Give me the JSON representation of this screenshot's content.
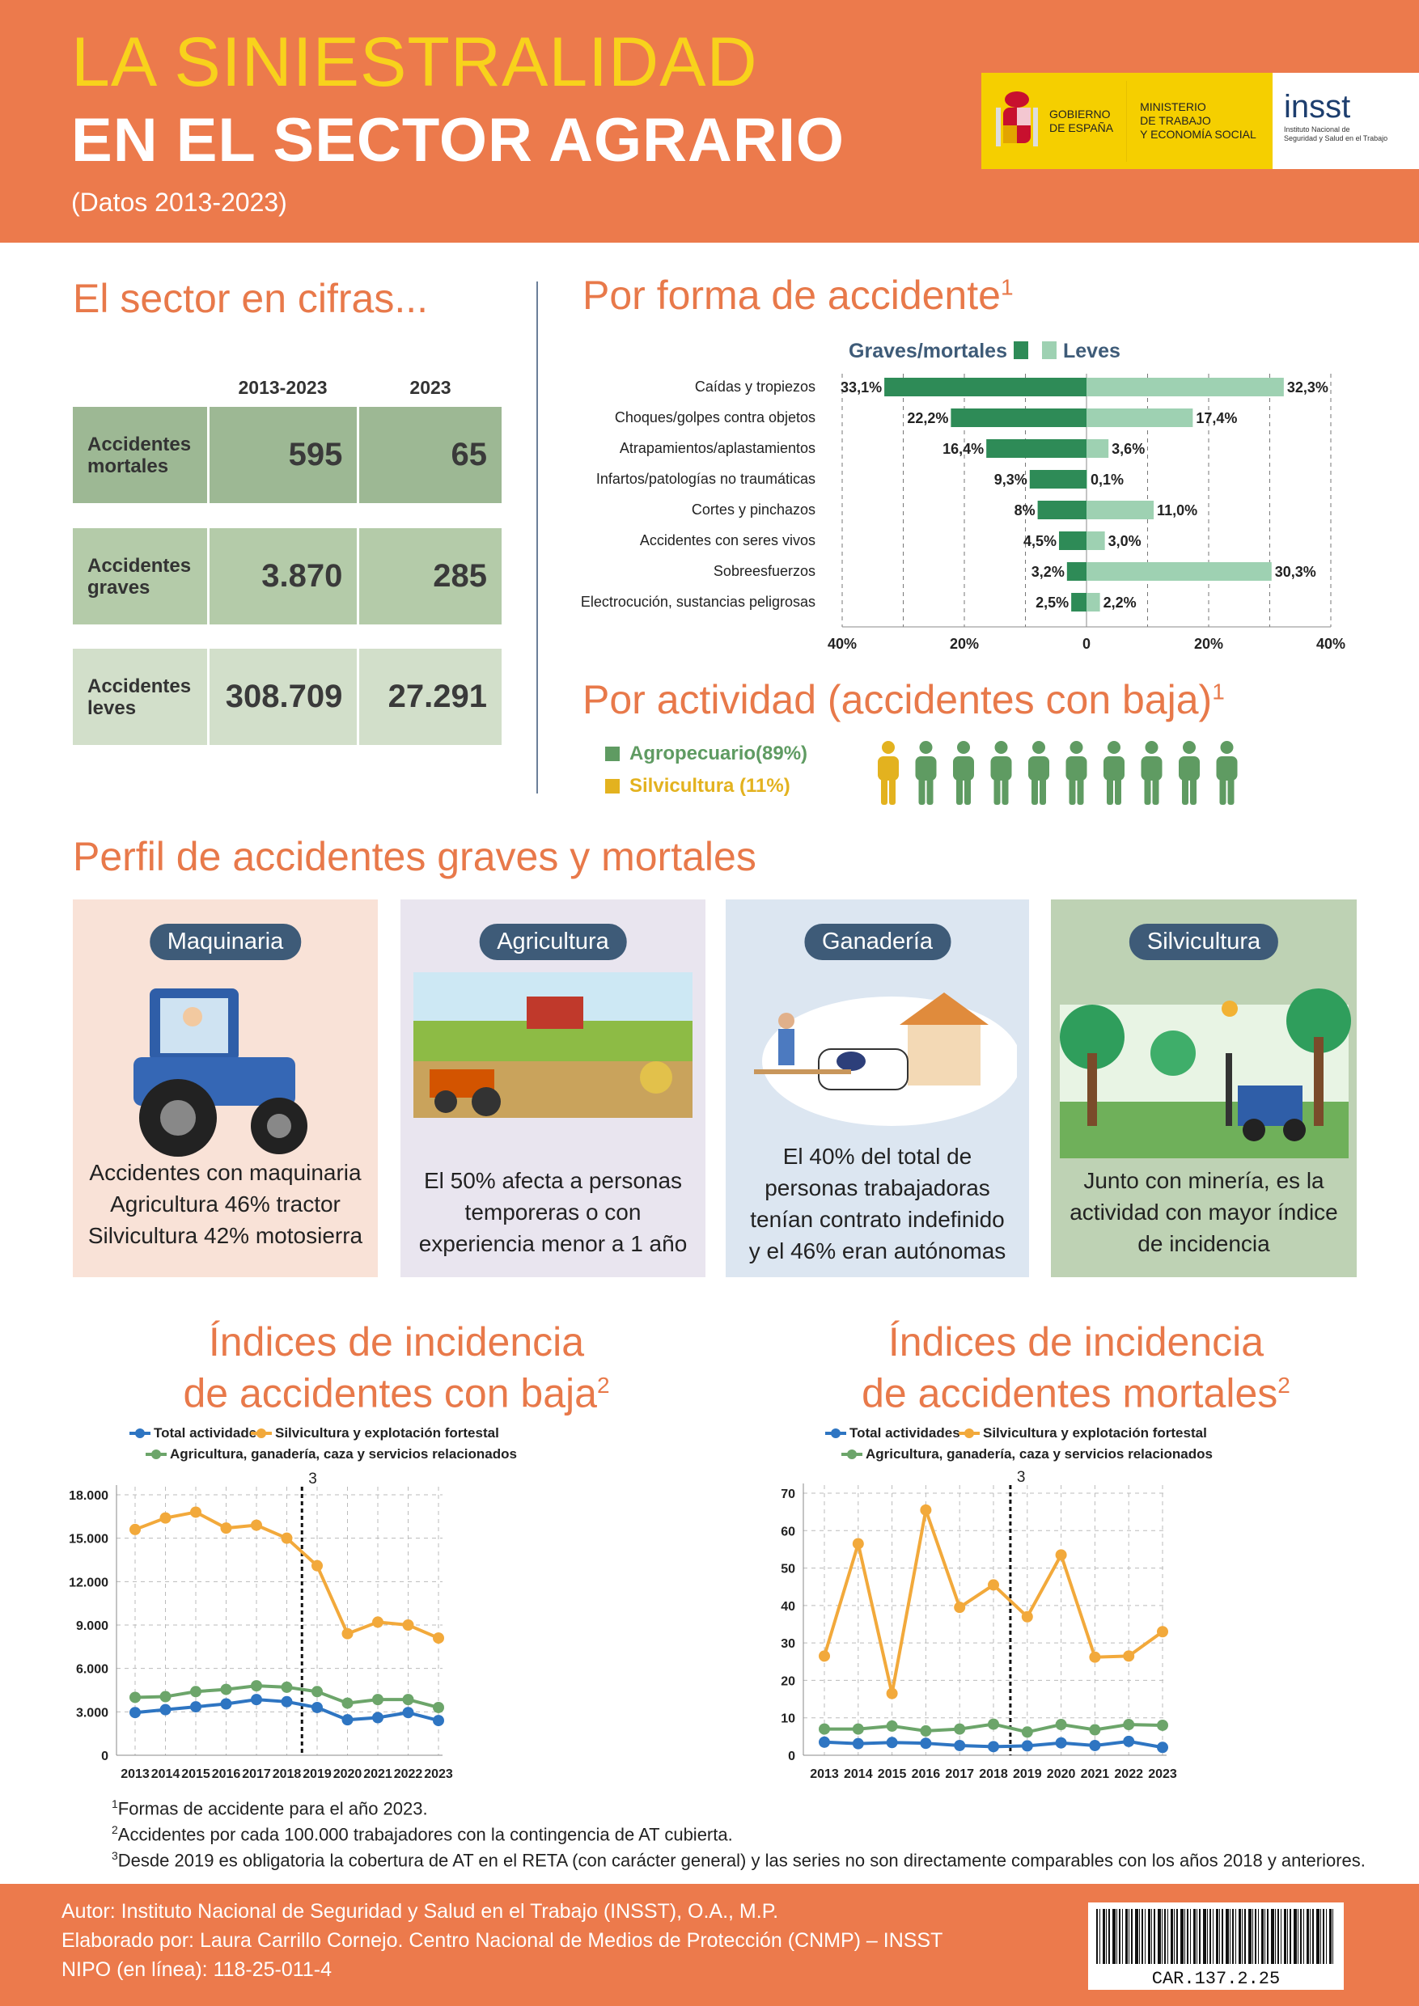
{
  "header": {
    "title_line1": "LA SINIESTRALIDAD",
    "title_line2": "EN EL SECTOR AGRARIO",
    "subtitle": "(Datos 2013-2023)",
    "logo_gobierno": [
      "GOBIERNO",
      "DE ESPAÑA"
    ],
    "logo_ministerio": [
      "MINISTERIO",
      "DE TRABAJO",
      "Y ECONOMÍA SOCIAL"
    ],
    "logo_insst": "insst",
    "logo_insst_sub": [
      "Instituto Nacional de",
      "Seguridad y Salud en el Trabajo"
    ]
  },
  "cifras": {
    "title": "El sector en cifras...",
    "col1": "2013-2023",
    "col2": "2023",
    "rows": [
      {
        "label": "Accidentes mortales",
        "v1": "595",
        "v2": "65",
        "color": "#9DB894"
      },
      {
        "label": "Accidentes graves",
        "v1": "3.870",
        "v2": "285",
        "color": "#B4CBA9"
      },
      {
        "label": "Accidentes leves",
        "v1": "308.709",
        "v2": "27.291",
        "color": "#D2DFCA"
      }
    ]
  },
  "forma": {
    "title": "Por forma de accidente",
    "sup": "1",
    "legend_graves": "Graves/mortales",
    "legend_leves": "Leves"
  },
  "actividad": {
    "title": "Por actividad (accidentes con baja)",
    "sup": "1",
    "legend": [
      {
        "label": "Agropecuario(89%)",
        "color": "#5F9B62"
      },
      {
        "label": "Silvicultura (11%)",
        "color": "#E3B21F"
      }
    ],
    "person_icons": {
      "total": 10,
      "silvicultura": 1
    }
  },
  "perfil": {
    "title": "Perfil de accidentes graves y mortales",
    "cards": [
      {
        "label": "Maquinaria",
        "text": [
          "Accidentes con maquinaria",
          "Agricultura 46% tractor",
          "Silvicultura 42% motosierra"
        ],
        "bg": "#F9E2D7"
      },
      {
        "label": "Agricultura",
        "text": [
          "El 50% afecta a personas",
          "temporeras o con",
          "experiencia menor a 1 año"
        ],
        "bg": "#E9E5EF"
      },
      {
        "label": "Ganadería",
        "text": [
          "El 40% del total de",
          "personas trabajadoras",
          "tenían contrato indefinido",
          "y el 46% eran autónomas"
        ],
        "bg": "#DCE6F1"
      },
      {
        "label": "Silvicultura",
        "text": [
          "Junto con minería, es la",
          "actividad con mayor índice",
          "de incidencia"
        ],
        "bg": "#BED2B4"
      }
    ]
  },
  "chart_data": [
    {
      "type": "bar",
      "orientation": "horizontal-diverging",
      "title": "Por forma de accidente",
      "categories": [
        "Caídas y tropiezos",
        "Choques/golpes contra objetos",
        "Atrapamientos/aplastamientos",
        "Infartos/patologías no traumáticas",
        "Cortes y pinchazos",
        "Accidentes con seres vivos",
        "Sobreesfuerzos",
        "Electrocución, sustancias peligrosas"
      ],
      "series": [
        {
          "name": "Graves/mortales",
          "values": [
            33.1,
            22.2,
            16.4,
            9.3,
            8,
            4.5,
            3.2,
            2.5
          ],
          "labels": [
            "33,1%",
            "22,2%",
            "16,4%",
            "9,3%",
            "8%",
            "4,5%",
            "3,2%",
            "2,5%"
          ],
          "color": "#2E8B57"
        },
        {
          "name": "Leves",
          "values": [
            32.3,
            17.4,
            3.6,
            0.1,
            11.0,
            3.0,
            30.3,
            2.2
          ],
          "labels": [
            "32,3%",
            "17,4%",
            "3,6%",
            "0,1%",
            "11,0%",
            "3,0%",
            "30,3%",
            "2,2%"
          ],
          "color": "#9ED1B2"
        }
      ],
      "xlim": [
        -40,
        40
      ],
      "xticks": [
        "40%",
        "20%",
        "0",
        "20%",
        "40%"
      ],
      "grid": true,
      "legend": "top"
    },
    {
      "type": "line",
      "title_lines": [
        "Índices de incidencia",
        "de accidentes con baja"
      ],
      "sup": "2",
      "marker_note": "3",
      "x": [
        "2013",
        "2014",
        "2015",
        "2016",
        "2017",
        "2018",
        "2019",
        "2020",
        "2021",
        "2022",
        "2023"
      ],
      "series": [
        {
          "name": "Total actividades",
          "color": "#2E75C2",
          "values": [
            2950,
            3150,
            3350,
            3550,
            3850,
            3700,
            3300,
            2450,
            2600,
            2950,
            2400
          ]
        },
        {
          "name": "Silvicultura y explotación fortestal",
          "color": "#F2A93B",
          "values": [
            15600,
            16400,
            16800,
            15700,
            15900,
            15000,
            13100,
            8400,
            9200,
            9000,
            8100
          ]
        },
        {
          "name": "Agricultura, ganadería, caza y servicios relacionados",
          "color": "#6CA56A",
          "values": [
            4000,
            4050,
            4400,
            4550,
            4800,
            4700,
            4400,
            3600,
            3850,
            3850,
            3300
          ]
        }
      ],
      "ylim": [
        0,
        18000
      ],
      "yticks": [
        "0",
        "3.000",
        "6.000",
        "9.000",
        "12.000",
        "15.000",
        "18.000"
      ],
      "grid": true,
      "legend": "top"
    },
    {
      "type": "line",
      "title_lines": [
        "Índices de incidencia",
        "de accidentes mortales"
      ],
      "sup": "2",
      "marker_note": "3",
      "x": [
        "2013",
        "2014",
        "2015",
        "2016",
        "2017",
        "2018",
        "2019",
        "2020",
        "2021",
        "2022",
        "2023"
      ],
      "series": [
        {
          "name": "Total actividades",
          "color": "#2E75C2",
          "values": [
            3.5,
            3.1,
            3.4,
            3.2,
            2.6,
            2.3,
            2.5,
            3.3,
            2.6,
            3.7,
            2.1
          ]
        },
        {
          "name": "Silvicultura y explotación fortestal",
          "color": "#F2A93B",
          "values": [
            26.5,
            56.5,
            16.5,
            65.5,
            39.5,
            45.5,
            37,
            53.5,
            26.2,
            26.5,
            33
          ]
        },
        {
          "name": "Agricultura, ganadería, caza y servicios relacionados",
          "color": "#6CA56A",
          "values": [
            7,
            7,
            7.8,
            6.5,
            7,
            8.3,
            6.2,
            8.2,
            6.8,
            8.2,
            8
          ]
        }
      ],
      "ylim": [
        0,
        70
      ],
      "yticks": [
        "0",
        "10",
        "20",
        "30",
        "40",
        "50",
        "60",
        "70"
      ],
      "grid": true,
      "legend": "top"
    }
  ],
  "footnotes": [
    {
      "n": "1",
      "text": "Formas de accidente para el año 2023."
    },
    {
      "n": "2",
      "text": "Accidentes por cada 100.000 trabajadores con la contingencia de AT cubierta."
    },
    {
      "n": "3",
      "text": "Desde 2019 es obligatoria la cobertura de AT en el RETA (con carácter general) y las series no son directamente comparables con los años 2018 y anteriores."
    }
  ],
  "footer": {
    "lines": [
      "Autor: Instituto Nacional de Seguridad y Salud en el Trabajo (INSST), O.A., M.P.",
      "Elaborado por: Laura Carrillo Cornejo. Centro Nacional de Medios de Protección (CNMP) – INSST",
      "NIPO (en línea): 118-25-011-4"
    ],
    "barcode_text": "CAR.137.2.25"
  },
  "colors": {
    "orange": "#EC7A4C",
    "yellow": "#F8D21C",
    "pill": "#3E5B78"
  }
}
